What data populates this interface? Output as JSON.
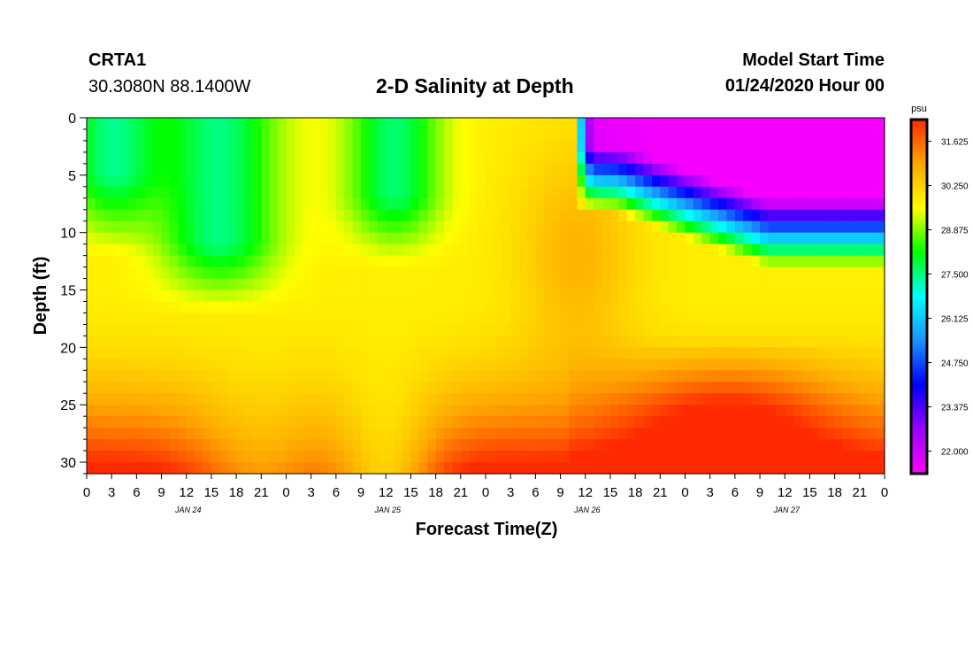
{
  "header": {
    "station_id": "CRTA1",
    "station_coords": "30.3080N 88.1400W",
    "title": "2-D Salinity at Depth",
    "model_label": "Model Start Time",
    "model_time": "01/24/2020 Hour 00"
  },
  "chart_data": {
    "type": "heatmap",
    "title": "2-D Salinity at Depth",
    "xlabel": "Forecast Time(Z)",
    "ylabel": "Depth (ft)",
    "x_tick_labels": [
      "0",
      "3",
      "6",
      "9",
      "12",
      "15",
      "18",
      "21",
      "0",
      "3",
      "6",
      "9",
      "12",
      "15",
      "18",
      "21",
      "0",
      "3",
      "6",
      "9",
      "12",
      "15",
      "18",
      "21",
      "0",
      "3",
      "6",
      "9",
      "12",
      "15",
      "18",
      "21",
      "0"
    ],
    "day_labels": [
      {
        "label": "JAN 24",
        "hour": 12
      },
      {
        "label": "JAN 25",
        "hour": 36
      },
      {
        "label": "JAN 26",
        "hour": 60
      },
      {
        "label": "JAN 27",
        "hour": 84
      }
    ],
    "xlim_hours": [
      0,
      96
    ],
    "ylim_ft": [
      0,
      31
    ],
    "y_ticks": [
      0,
      5,
      10,
      15,
      20,
      25,
      30
    ],
    "colorbar": {
      "unit": "psu",
      "ticks": [
        "31.625",
        "30.250",
        "28.875",
        "27.500",
        "26.125",
        "24.750",
        "23.375",
        "22.000"
      ],
      "range": [
        21.3,
        32.3
      ]
    },
    "colors": [
      "#ff00ff",
      "#9900ff",
      "#0000ff",
      "#1e90ff",
      "#00ffff",
      "#00ff00",
      "#ffff00",
      "#ffa500",
      "#ff2a00"
    ]
  }
}
